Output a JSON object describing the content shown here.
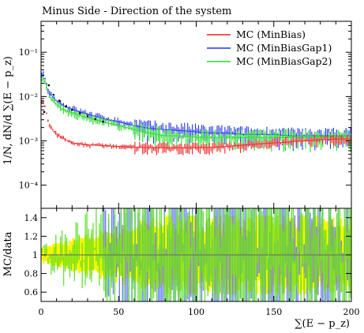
{
  "chart_data": {
    "type": "line",
    "title": "Minus Side - Direction of the system",
    "xlabel": "∑(E − p_z)",
    "ylabel": "1/N, dN/d ∑(E − p_z)",
    "ratio_ylabel": "MC/data",
    "xlim": [
      0,
      200
    ],
    "ylim": [
      3e-05,
      0.5
    ],
    "y_scale": "log",
    "ratio_ylim": [
      0.5,
      1.5
    ],
    "x_ticks": [
      0,
      50,
      100,
      150,
      200
    ],
    "y_ticks": [
      {
        "value": 0.1,
        "label": "10⁻¹"
      },
      {
        "value": 0.01,
        "label": "10⁻²"
      },
      {
        "value": 0.001,
        "label": "10⁻³"
      },
      {
        "value": 0.0001,
        "label": "10⁻⁴"
      }
    ],
    "ratio_ticks": [
      "0.6",
      "0.8",
      "1",
      "1.2",
      "1.4"
    ],
    "legend_position": "top-right",
    "series": [
      {
        "name": "MC (MinBias)",
        "color": "#ee2222",
        "x": [
          2,
          5,
          10,
          15,
          20,
          25,
          30,
          35,
          40,
          50,
          60,
          70,
          80,
          90,
          100,
          110,
          120,
          130,
          140,
          150,
          160,
          170,
          180,
          190,
          199
        ],
        "values": [
          0.0075,
          0.0023,
          0.0014,
          0.0011,
          0.0009,
          0.00085,
          0.0008,
          0.0008,
          0.00078,
          0.00075,
          0.00072,
          0.0007,
          0.0007,
          0.0007,
          0.0007,
          0.00072,
          0.00075,
          0.0008,
          0.00085,
          0.0009,
          0.00095,
          0.001,
          0.00105,
          0.0011,
          0.0011
        ]
      },
      {
        "name": "MC (MinBiasGap1)",
        "color": "#2233ee",
        "x": [
          2,
          5,
          10,
          15,
          20,
          25,
          30,
          40,
          50,
          60,
          70,
          80,
          90,
          100,
          110,
          120,
          130,
          140,
          150,
          160,
          170,
          180,
          190,
          199
        ],
        "values": [
          0.03,
          0.012,
          0.008,
          0.006,
          0.0052,
          0.0045,
          0.004,
          0.0032,
          0.0027,
          0.0022,
          0.0019,
          0.0018,
          0.0017,
          0.0016,
          0.0015,
          0.0015,
          0.0014,
          0.0014,
          0.0014,
          0.0013,
          0.0013,
          0.0013,
          0.0013,
          0.0013
        ]
      },
      {
        "name": "MC (MinBiasGap2)",
        "color": "#22dd22",
        "x": [
          2,
          5,
          10,
          15,
          20,
          25,
          30,
          40,
          50,
          60,
          70,
          80,
          90,
          100,
          110,
          120,
          130,
          140,
          150,
          160,
          170,
          180,
          190,
          199
        ],
        "values": [
          0.025,
          0.01,
          0.0065,
          0.005,
          0.0043,
          0.0037,
          0.0033,
          0.0027,
          0.0022,
          0.0018,
          0.0015,
          0.0013,
          0.0013,
          0.0012,
          0.0012,
          0.0012,
          0.0012,
          0.0012,
          0.0012,
          0.0012,
          0.0012,
          0.0012,
          0.0012,
          0.0012
        ]
      }
    ],
    "data_points": {
      "x": [
        2,
        5,
        8,
        12,
        16,
        20,
        25,
        30,
        35,
        40
      ],
      "values": [
        0.0045,
        0.018,
        0.011,
        0.008,
        0.006,
        0.005,
        0.0042,
        0.0036,
        0.0031,
        0.0027
      ]
    }
  }
}
